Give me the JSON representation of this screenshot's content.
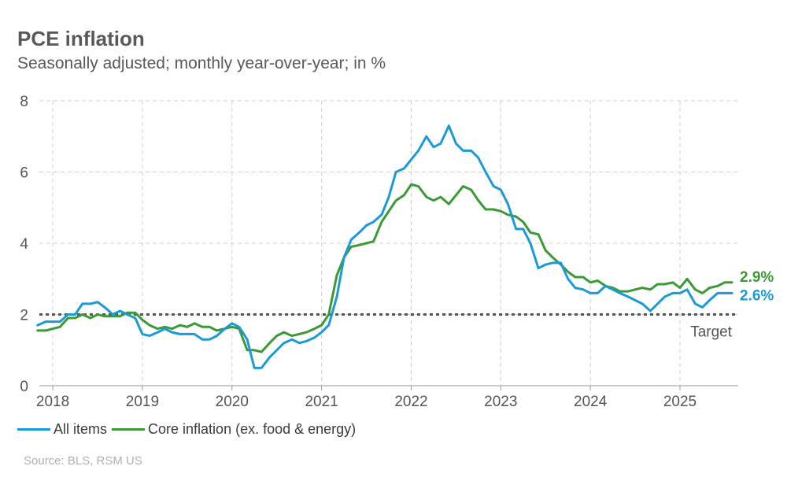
{
  "header": {
    "title": "PCE inflation",
    "subtitle": "Seasonally adjusted; monthly year-over-year; in %"
  },
  "legend": {
    "all_items": "All items",
    "core": "Core inflation (ex. food & energy)"
  },
  "source": "Source: BLS, RSM US",
  "colors": {
    "all_items": "#1a9bd7",
    "core": "#3c9a35",
    "target": "#555555",
    "grid": "#cfcfcf"
  },
  "chart_data": {
    "type": "line",
    "title": "PCE inflation",
    "subtitle": "Seasonally adjusted; monthly year-over-year; in %",
    "xlabel": "",
    "ylabel": "",
    "ylim": [
      0,
      8
    ],
    "xlim": [
      2017.85,
      2025.65
    ],
    "y_ticks": [
      0,
      2,
      4,
      6,
      8
    ],
    "x_ticks": [
      2018,
      2019,
      2020,
      2021,
      2022,
      2023,
      2024,
      2025
    ],
    "x_tick_labels": [
      "2018",
      "2019",
      "2020",
      "2021",
      "2022",
      "2023",
      "2024",
      "2025"
    ],
    "grid": true,
    "legend_position": "bottom-left",
    "target": {
      "value": 2,
      "label": "Target"
    },
    "series": [
      {
        "name": "All items",
        "end_label": "2.6%",
        "x": [
          2017.83,
          2017.92,
          2018.0,
          2018.08,
          2018.17,
          2018.25,
          2018.33,
          2018.42,
          2018.5,
          2018.58,
          2018.67,
          2018.75,
          2018.83,
          2018.92,
          2019.0,
          2019.08,
          2019.17,
          2019.25,
          2019.33,
          2019.42,
          2019.5,
          2019.58,
          2019.67,
          2019.75,
          2019.83,
          2019.92,
          2020.0,
          2020.08,
          2020.17,
          2020.25,
          2020.33,
          2020.42,
          2020.5,
          2020.58,
          2020.67,
          2020.75,
          2020.83,
          2020.92,
          2021.0,
          2021.08,
          2021.17,
          2021.25,
          2021.33,
          2021.42,
          2021.5,
          2021.58,
          2021.67,
          2021.75,
          2021.83,
          2021.92,
          2022.0,
          2022.08,
          2022.17,
          2022.25,
          2022.33,
          2022.42,
          2022.5,
          2022.58,
          2022.67,
          2022.75,
          2022.83,
          2022.92,
          2023.0,
          2023.08,
          2023.17,
          2023.25,
          2023.33,
          2023.42,
          2023.5,
          2023.58,
          2023.67,
          2023.75,
          2023.83,
          2023.92,
          2024.0,
          2024.08,
          2024.17,
          2024.25,
          2024.33,
          2024.42,
          2024.5,
          2024.58,
          2024.67,
          2024.75,
          2024.83,
          2024.92,
          2025.0,
          2025.08,
          2025.17,
          2025.25,
          2025.33,
          2025.42,
          2025.5,
          2025.58
        ],
        "values": [
          1.7,
          1.8,
          1.8,
          1.8,
          2.0,
          2.0,
          2.3,
          2.3,
          2.35,
          2.2,
          2.0,
          2.1,
          2.0,
          1.9,
          1.45,
          1.4,
          1.5,
          1.6,
          1.5,
          1.45,
          1.45,
          1.45,
          1.3,
          1.3,
          1.4,
          1.6,
          1.75,
          1.65,
          1.3,
          0.5,
          0.5,
          0.8,
          1.0,
          1.2,
          1.3,
          1.2,
          1.25,
          1.35,
          1.5,
          1.7,
          2.5,
          3.6,
          4.1,
          4.3,
          4.5,
          4.6,
          4.8,
          5.3,
          6.0,
          6.1,
          6.35,
          6.6,
          7.0,
          6.7,
          6.8,
          7.3,
          6.8,
          6.6,
          6.6,
          6.4,
          6.0,
          5.6,
          5.5,
          5.1,
          4.4,
          4.4,
          4.0,
          3.3,
          3.4,
          3.45,
          3.45,
          3.0,
          2.75,
          2.7,
          2.6,
          2.6,
          2.8,
          2.7,
          2.6,
          2.5,
          2.4,
          2.3,
          2.1,
          2.3,
          2.5,
          2.6,
          2.6,
          2.7,
          2.3,
          2.2,
          2.4,
          2.6,
          2.6,
          2.6
        ]
      },
      {
        "name": "Core inflation (ex. food & energy)",
        "end_label": "2.9%",
        "x": [
          2017.83,
          2017.92,
          2018.0,
          2018.08,
          2018.17,
          2018.25,
          2018.33,
          2018.42,
          2018.5,
          2018.58,
          2018.67,
          2018.75,
          2018.83,
          2018.92,
          2019.0,
          2019.08,
          2019.17,
          2019.25,
          2019.33,
          2019.42,
          2019.5,
          2019.58,
          2019.67,
          2019.75,
          2019.83,
          2019.92,
          2020.0,
          2020.08,
          2020.17,
          2020.25,
          2020.33,
          2020.42,
          2020.5,
          2020.58,
          2020.67,
          2020.75,
          2020.83,
          2020.92,
          2021.0,
          2021.08,
          2021.17,
          2021.25,
          2021.33,
          2021.42,
          2021.5,
          2021.58,
          2021.67,
          2021.75,
          2021.83,
          2021.92,
          2022.0,
          2022.08,
          2022.17,
          2022.25,
          2022.33,
          2022.42,
          2022.5,
          2022.58,
          2022.67,
          2022.75,
          2022.83,
          2022.92,
          2023.0,
          2023.08,
          2023.17,
          2023.25,
          2023.33,
          2023.42,
          2023.5,
          2023.58,
          2023.67,
          2023.75,
          2023.83,
          2023.92,
          2024.0,
          2024.08,
          2024.17,
          2024.25,
          2024.33,
          2024.42,
          2024.5,
          2024.58,
          2024.67,
          2024.75,
          2024.83,
          2024.92,
          2025.0,
          2025.08,
          2025.17,
          2025.25,
          2025.33,
          2025.42,
          2025.5,
          2025.58
        ],
        "values": [
          1.55,
          1.55,
          1.6,
          1.65,
          1.9,
          1.9,
          2.0,
          1.9,
          2.0,
          1.95,
          1.95,
          1.95,
          2.05,
          2.05,
          1.85,
          1.7,
          1.6,
          1.65,
          1.6,
          1.7,
          1.65,
          1.75,
          1.65,
          1.65,
          1.55,
          1.6,
          1.65,
          1.6,
          1.0,
          1.0,
          0.95,
          1.2,
          1.4,
          1.5,
          1.4,
          1.45,
          1.5,
          1.6,
          1.7,
          2.0,
          3.1,
          3.6,
          3.9,
          3.95,
          4.0,
          4.05,
          4.6,
          4.9,
          5.2,
          5.35,
          5.65,
          5.6,
          5.3,
          5.2,
          5.3,
          5.1,
          5.35,
          5.6,
          5.5,
          5.2,
          4.95,
          4.95,
          4.9,
          4.8,
          4.75,
          4.6,
          4.3,
          4.25,
          3.8,
          3.6,
          3.4,
          3.2,
          3.05,
          3.05,
          2.9,
          2.95,
          2.8,
          2.75,
          2.65,
          2.65,
          2.7,
          2.75,
          2.7,
          2.85,
          2.85,
          2.9,
          2.75,
          3.0,
          2.7,
          2.6,
          2.75,
          2.8,
          2.9,
          2.9
        ]
      }
    ]
  }
}
